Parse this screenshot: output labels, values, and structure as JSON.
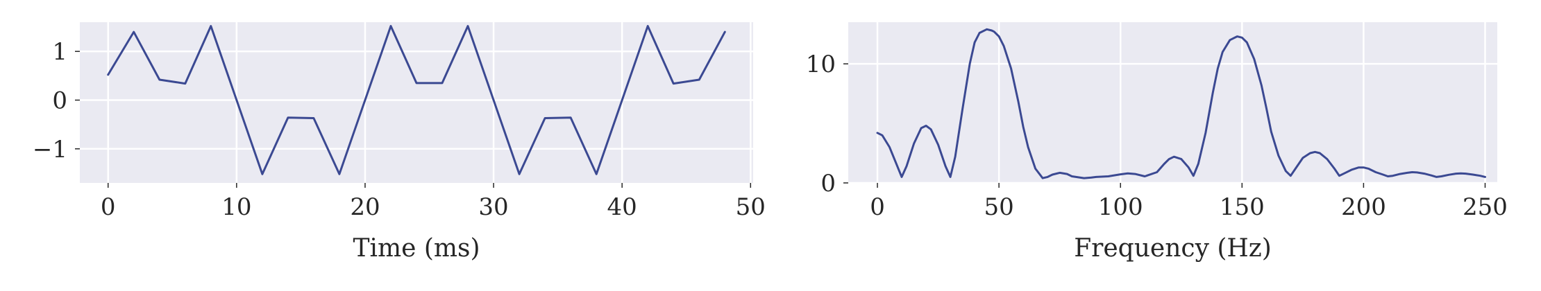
{
  "colors": {
    "series": "#3b4992",
    "panel": "#eaeaf2",
    "grid": "#ffffff"
  },
  "chart_data": [
    {
      "type": "line",
      "xlabel": "Time (ms)",
      "ylabel": "",
      "xlim": [
        -2.2,
        50.2
      ],
      "ylim": [
        -1.7,
        1.6
      ],
      "xticks": [
        0,
        10,
        20,
        30,
        40,
        50
      ],
      "xtick_labels": [
        "0",
        "10",
        "20",
        "30",
        "40",
        "50"
      ],
      "yticks": [
        -1,
        0,
        1
      ],
      "ytick_labels": [
        "−1",
        "0",
        "1"
      ],
      "grid": true,
      "series": [
        {
          "x": [
            0,
            2,
            4,
            6,
            8,
            12,
            14,
            16,
            18,
            22,
            24,
            26,
            28,
            32,
            34,
            36,
            38,
            42,
            44,
            46,
            48
          ],
          "values": [
            0.52,
            1.4,
            0.42,
            0.34,
            1.52,
            -1.52,
            -0.36,
            -0.37,
            -1.52,
            1.52,
            0.35,
            0.35,
            1.52,
            -1.52,
            -0.37,
            -0.36,
            -1.52,
            1.52,
            0.34,
            0.42,
            1.4
          ]
        }
      ]
    },
    {
      "type": "line",
      "xlabel": "Frequency (Hz)",
      "ylabel": "",
      "xlim": [
        -12,
        255
      ],
      "ylim": [
        0,
        13.5
      ],
      "xticks": [
        0,
        50,
        100,
        150,
        200,
        250
      ],
      "xtick_labels": [
        "0",
        "50",
        "100",
        "150",
        "200",
        "250"
      ],
      "yticks": [
        0,
        10
      ],
      "ytick_labels": [
        "0",
        "10"
      ],
      "grid": true,
      "series": [
        {
          "x": [
            0,
            2,
            5,
            8,
            10,
            12,
            15,
            18,
            20,
            22,
            25,
            28,
            30,
            32,
            35,
            38,
            40,
            42,
            45,
            47,
            48,
            50,
            52,
            55,
            58,
            60,
            62,
            65,
            68,
            70,
            72,
            75,
            78,
            80,
            85,
            88,
            90,
            95,
            100,
            103,
            106,
            110,
            115,
            118,
            120,
            122,
            125,
            128,
            130,
            132,
            135,
            138,
            140,
            142,
            145,
            148,
            150,
            152,
            155,
            158,
            160,
            162,
            165,
            168,
            170,
            172,
            175,
            178,
            180,
            182,
            185,
            188,
            190,
            192,
            195,
            198,
            200,
            202,
            205,
            208,
            210,
            212,
            215,
            218,
            220,
            222,
            225,
            228,
            230,
            232,
            235,
            238,
            240,
            242,
            245,
            248,
            250
          ],
          "values": [
            4.2,
            4.0,
            3.0,
            1.5,
            0.5,
            1.4,
            3.3,
            4.6,
            4.8,
            4.5,
            3.2,
            1.4,
            0.5,
            2.2,
            6.2,
            10.0,
            11.8,
            12.6,
            12.9,
            12.8,
            12.7,
            12.3,
            11.5,
            9.6,
            6.8,
            4.7,
            3.0,
            1.2,
            0.4,
            0.5,
            0.7,
            0.85,
            0.75,
            0.55,
            0.4,
            0.45,
            0.5,
            0.55,
            0.72,
            0.8,
            0.75,
            0.55,
            0.9,
            1.6,
            2.0,
            2.2,
            2.0,
            1.3,
            0.6,
            1.6,
            4.2,
            7.6,
            9.6,
            11.0,
            12.0,
            12.3,
            12.2,
            11.8,
            10.4,
            8.2,
            6.3,
            4.3,
            2.3,
            1.0,
            0.6,
            1.2,
            2.1,
            2.5,
            2.6,
            2.5,
            2.0,
            1.2,
            0.6,
            0.8,
            1.1,
            1.3,
            1.3,
            1.2,
            0.9,
            0.7,
            0.55,
            0.6,
            0.75,
            0.85,
            0.9,
            0.88,
            0.78,
            0.62,
            0.5,
            0.55,
            0.68,
            0.78,
            0.8,
            0.78,
            0.7,
            0.6,
            0.5
          ]
        }
      ]
    }
  ]
}
